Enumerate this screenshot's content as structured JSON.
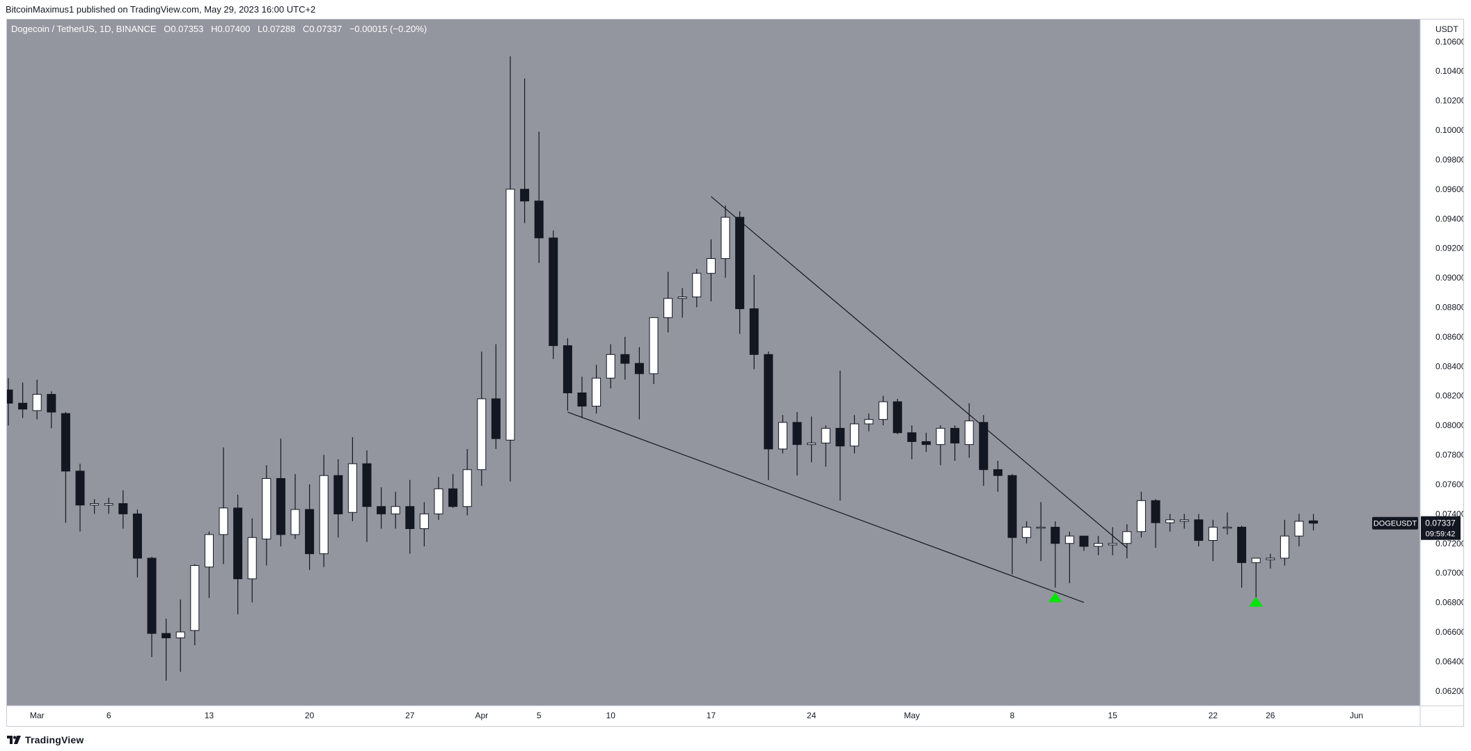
{
  "header": {
    "author": "BitcoinMaximus1",
    "published_text": "published on TradingView.com, May 29, 2023 16:00 UTC+2"
  },
  "legend": {
    "symbol_text": "Dogecoin / TetherUS, 1D, BINANCE",
    "o_label": "O",
    "o_value": "0.07353",
    "h_label": "H",
    "h_value": "0.07400",
    "l_label": "L",
    "l_value": "0.07288",
    "c_label": "C",
    "c_value": "0.07337",
    "change_text": "−0.00015 (−0.20%)"
  },
  "footer": {
    "brand": "TradingView"
  },
  "colors": {
    "plot_background": "#93969f",
    "up_body": "#ffffff",
    "down_body": "#131722",
    "wick": "#131722",
    "trendline": "#131722",
    "marker": "#00e500",
    "price_tag_bg": "#131722",
    "price_tag_text": "#ffffff"
  },
  "chart_data": {
    "type": "candlestick",
    "currency": "USDT",
    "ylim": [
      0.061,
      0.1075
    ],
    "y_ticks": [
      0.062,
      0.064,
      0.066,
      0.068,
      0.07,
      0.072,
      0.074,
      0.076,
      0.078,
      0.08,
      0.082,
      0.084,
      0.086,
      0.088,
      0.09,
      0.092,
      0.094,
      0.096,
      0.098,
      0.1,
      0.102,
      0.104,
      0.106
    ],
    "y_tick_labels": [
      "0.06200",
      "0.06400",
      "0.06600",
      "0.06800",
      "0.07000",
      "0.07200",
      "0.07400",
      "0.07600",
      "0.07800",
      "0.08000",
      "0.08200",
      "0.08400",
      "0.08600",
      "0.08800",
      "0.09000",
      "0.09200",
      "0.09400",
      "0.09600",
      "0.09800",
      "0.10000",
      "0.10200",
      "0.10400",
      "0.10600"
    ],
    "x_labels": [
      {
        "label": "Mar",
        "date": "2023-03-01"
      },
      {
        "label": "6",
        "date": "2023-03-06"
      },
      {
        "label": "13",
        "date": "2023-03-13"
      },
      {
        "label": "20",
        "date": "2023-03-20"
      },
      {
        "label": "27",
        "date": "2023-03-27"
      },
      {
        "label": "Apr",
        "date": "2023-04-01"
      },
      {
        "label": "5",
        "date": "2023-04-05"
      },
      {
        "label": "10",
        "date": "2023-04-10"
      },
      {
        "label": "17",
        "date": "2023-04-17"
      },
      {
        "label": "24",
        "date": "2023-04-24"
      },
      {
        "label": "May",
        "date": "2023-05-01"
      },
      {
        "label": "8",
        "date": "2023-05-08"
      },
      {
        "label": "15",
        "date": "2023-05-15"
      },
      {
        "label": "22",
        "date": "2023-05-22"
      },
      {
        "label": "26",
        "date": "2023-05-26"
      },
      {
        "label": "Jun",
        "date": "2023-06-01"
      }
    ],
    "candles": [
      {
        "date": "2023-02-27",
        "o": 0.0824,
        "h": 0.0832,
        "l": 0.08,
        "c": 0.0815
      },
      {
        "date": "2023-02-28",
        "o": 0.0815,
        "h": 0.0829,
        "l": 0.0805,
        "c": 0.0811
      },
      {
        "date": "2023-03-01",
        "o": 0.081,
        "h": 0.0831,
        "l": 0.0804,
        "c": 0.0821
      },
      {
        "date": "2023-03-02",
        "o": 0.0821,
        "h": 0.0823,
        "l": 0.0798,
        "c": 0.0809
      },
      {
        "date": "2023-03-03",
        "o": 0.0808,
        "h": 0.0809,
        "l": 0.0734,
        "c": 0.0769
      },
      {
        "date": "2023-03-04",
        "o": 0.0769,
        "h": 0.0774,
        "l": 0.0728,
        "c": 0.0746
      },
      {
        "date": "2023-03-05",
        "o": 0.0746,
        "h": 0.075,
        "l": 0.074,
        "c": 0.0747
      },
      {
        "date": "2023-03-06",
        "o": 0.0746,
        "h": 0.0751,
        "l": 0.074,
        "c": 0.0747
      },
      {
        "date": "2023-03-07",
        "o": 0.0747,
        "h": 0.0756,
        "l": 0.073,
        "c": 0.074
      },
      {
        "date": "2023-03-08",
        "o": 0.074,
        "h": 0.0743,
        "l": 0.0697,
        "c": 0.071
      },
      {
        "date": "2023-03-09",
        "o": 0.071,
        "h": 0.0711,
        "l": 0.0643,
        "c": 0.0659
      },
      {
        "date": "2023-03-10",
        "o": 0.0659,
        "h": 0.0669,
        "l": 0.0627,
        "c": 0.0656
      },
      {
        "date": "2023-03-11",
        "o": 0.0656,
        "h": 0.0682,
        "l": 0.0633,
        "c": 0.066
      },
      {
        "date": "2023-03-12",
        "o": 0.0661,
        "h": 0.0706,
        "l": 0.0651,
        "c": 0.0705
      },
      {
        "date": "2023-03-13",
        "o": 0.0704,
        "h": 0.0728,
        "l": 0.0683,
        "c": 0.0726
      },
      {
        "date": "2023-03-14",
        "o": 0.0726,
        "h": 0.0785,
        "l": 0.0706,
        "c": 0.0744
      },
      {
        "date": "2023-03-15",
        "o": 0.0744,
        "h": 0.0753,
        "l": 0.0672,
        "c": 0.0696
      },
      {
        "date": "2023-03-16",
        "o": 0.0696,
        "h": 0.0737,
        "l": 0.068,
        "c": 0.0724
      },
      {
        "date": "2023-03-17",
        "o": 0.0723,
        "h": 0.0773,
        "l": 0.0705,
        "c": 0.0764
      },
      {
        "date": "2023-03-18",
        "o": 0.0764,
        "h": 0.0791,
        "l": 0.0718,
        "c": 0.0726
      },
      {
        "date": "2023-03-19",
        "o": 0.0726,
        "h": 0.0767,
        "l": 0.0723,
        "c": 0.0743
      },
      {
        "date": "2023-03-20",
        "o": 0.0743,
        "h": 0.076,
        "l": 0.0702,
        "c": 0.0713
      },
      {
        "date": "2023-03-21",
        "o": 0.0713,
        "h": 0.078,
        "l": 0.0704,
        "c": 0.0766
      },
      {
        "date": "2023-03-22",
        "o": 0.0766,
        "h": 0.0777,
        "l": 0.0724,
        "c": 0.074
      },
      {
        "date": "2023-03-23",
        "o": 0.0741,
        "h": 0.0792,
        "l": 0.0735,
        "c": 0.0774
      },
      {
        "date": "2023-03-24",
        "o": 0.0774,
        "h": 0.0783,
        "l": 0.0721,
        "c": 0.0745
      },
      {
        "date": "2023-03-25",
        "o": 0.0745,
        "h": 0.0758,
        "l": 0.073,
        "c": 0.074
      },
      {
        "date": "2023-03-26",
        "o": 0.074,
        "h": 0.0755,
        "l": 0.073,
        "c": 0.0745
      },
      {
        "date": "2023-03-27",
        "o": 0.0745,
        "h": 0.0763,
        "l": 0.0713,
        "c": 0.073
      },
      {
        "date": "2023-03-28",
        "o": 0.073,
        "h": 0.0748,
        "l": 0.0718,
        "c": 0.074
      },
      {
        "date": "2023-03-29",
        "o": 0.074,
        "h": 0.0765,
        "l": 0.0736,
        "c": 0.0757
      },
      {
        "date": "2023-03-30",
        "o": 0.0757,
        "h": 0.0767,
        "l": 0.0744,
        "c": 0.0745
      },
      {
        "date": "2023-03-31",
        "o": 0.0745,
        "h": 0.0784,
        "l": 0.0739,
        "c": 0.077
      },
      {
        "date": "2023-04-01",
        "o": 0.077,
        "h": 0.085,
        "l": 0.0759,
        "c": 0.0818
      },
      {
        "date": "2023-04-02",
        "o": 0.0818,
        "h": 0.0855,
        "l": 0.0784,
        "c": 0.0791
      },
      {
        "date": "2023-04-03",
        "o": 0.079,
        "h": 0.105,
        "l": 0.0762,
        "c": 0.096
      },
      {
        "date": "2023-04-04",
        "o": 0.096,
        "h": 0.1035,
        "l": 0.0937,
        "c": 0.0952
      },
      {
        "date": "2023-04-05",
        "o": 0.0952,
        "h": 0.0999,
        "l": 0.091,
        "c": 0.0927
      },
      {
        "date": "2023-04-06",
        "o": 0.0927,
        "h": 0.0932,
        "l": 0.0845,
        "c": 0.0854
      },
      {
        "date": "2023-04-07",
        "o": 0.0854,
        "h": 0.0859,
        "l": 0.081,
        "c": 0.0822
      },
      {
        "date": "2023-04-08",
        "o": 0.0822,
        "h": 0.0833,
        "l": 0.0805,
        "c": 0.0813
      },
      {
        "date": "2023-04-09",
        "o": 0.0813,
        "h": 0.0841,
        "l": 0.0808,
        "c": 0.0832
      },
      {
        "date": "2023-04-10",
        "o": 0.0832,
        "h": 0.0855,
        "l": 0.0825,
        "c": 0.0848
      },
      {
        "date": "2023-04-11",
        "o": 0.0848,
        "h": 0.086,
        "l": 0.0831,
        "c": 0.0842
      },
      {
        "date": "2023-04-12",
        "o": 0.0842,
        "h": 0.0853,
        "l": 0.0804,
        "c": 0.0835
      },
      {
        "date": "2023-04-13",
        "o": 0.0835,
        "h": 0.087,
        "l": 0.0828,
        "c": 0.0873
      },
      {
        "date": "2023-04-14",
        "o": 0.0873,
        "h": 0.0904,
        "l": 0.0863,
        "c": 0.0886
      },
      {
        "date": "2023-04-15",
        "o": 0.0886,
        "h": 0.0893,
        "l": 0.0873,
        "c": 0.0887
      },
      {
        "date": "2023-04-16",
        "o": 0.0887,
        "h": 0.0906,
        "l": 0.088,
        "c": 0.0903
      },
      {
        "date": "2023-04-17",
        "o": 0.0903,
        "h": 0.0926,
        "l": 0.0884,
        "c": 0.0913
      },
      {
        "date": "2023-04-18",
        "o": 0.0913,
        "h": 0.0949,
        "l": 0.09,
        "c": 0.0941
      },
      {
        "date": "2023-04-19",
        "o": 0.0941,
        "h": 0.0945,
        "l": 0.0862,
        "c": 0.0879
      },
      {
        "date": "2023-04-20",
        "o": 0.0879,
        "h": 0.0902,
        "l": 0.0838,
        "c": 0.0848
      },
      {
        "date": "2023-04-21",
        "o": 0.0848,
        "h": 0.085,
        "l": 0.0763,
        "c": 0.0784
      },
      {
        "date": "2023-04-22",
        "o": 0.0784,
        "h": 0.0807,
        "l": 0.0781,
        "c": 0.0802
      },
      {
        "date": "2023-04-23",
        "o": 0.0802,
        "h": 0.0809,
        "l": 0.0766,
        "c": 0.0787
      },
      {
        "date": "2023-04-24",
        "o": 0.0787,
        "h": 0.0806,
        "l": 0.0775,
        "c": 0.0788
      },
      {
        "date": "2023-04-25",
        "o": 0.0788,
        "h": 0.08,
        "l": 0.0772,
        "c": 0.0798
      },
      {
        "date": "2023-04-26",
        "o": 0.0798,
        "h": 0.0837,
        "l": 0.0749,
        "c": 0.0786
      },
      {
        "date": "2023-04-27",
        "o": 0.0786,
        "h": 0.0807,
        "l": 0.0781,
        "c": 0.0801
      },
      {
        "date": "2023-04-28",
        "o": 0.0801,
        "h": 0.0808,
        "l": 0.0796,
        "c": 0.0804
      },
      {
        "date": "2023-04-29",
        "o": 0.0804,
        "h": 0.082,
        "l": 0.08,
        "c": 0.0816
      },
      {
        "date": "2023-04-30",
        "o": 0.0816,
        "h": 0.0818,
        "l": 0.0794,
        "c": 0.0795
      },
      {
        "date": "2023-05-01",
        "o": 0.0795,
        "h": 0.08,
        "l": 0.0777,
        "c": 0.0789
      },
      {
        "date": "2023-05-02",
        "o": 0.0789,
        "h": 0.0795,
        "l": 0.0782,
        "c": 0.0787
      },
      {
        "date": "2023-05-03",
        "o": 0.0787,
        "h": 0.08,
        "l": 0.0773,
        "c": 0.0798
      },
      {
        "date": "2023-05-04",
        "o": 0.0798,
        "h": 0.08,
        "l": 0.0776,
        "c": 0.0788
      },
      {
        "date": "2023-05-05",
        "o": 0.0787,
        "h": 0.0815,
        "l": 0.0778,
        "c": 0.0803
      },
      {
        "date": "2023-05-06",
        "o": 0.0802,
        "h": 0.0807,
        "l": 0.0759,
        "c": 0.077
      },
      {
        "date": "2023-05-07",
        "o": 0.077,
        "h": 0.0776,
        "l": 0.0755,
        "c": 0.0766
      },
      {
        "date": "2023-05-08",
        "o": 0.0766,
        "h": 0.0767,
        "l": 0.0699,
        "c": 0.0724
      },
      {
        "date": "2023-05-09",
        "o": 0.0724,
        "h": 0.0735,
        "l": 0.072,
        "c": 0.0731
      },
      {
        "date": "2023-05-10",
        "o": 0.0731,
        "h": 0.0748,
        "l": 0.0708,
        "c": 0.0731
      },
      {
        "date": "2023-05-11",
        "o": 0.0731,
        "h": 0.0735,
        "l": 0.069,
        "c": 0.072
      },
      {
        "date": "2023-05-12",
        "o": 0.072,
        "h": 0.0728,
        "l": 0.0693,
        "c": 0.0725
      },
      {
        "date": "2023-05-13",
        "o": 0.0725,
        "h": 0.0725,
        "l": 0.0715,
        "c": 0.0718
      },
      {
        "date": "2023-05-14",
        "o": 0.0718,
        "h": 0.0725,
        "l": 0.0712,
        "c": 0.072
      },
      {
        "date": "2023-05-15",
        "o": 0.0719,
        "h": 0.0731,
        "l": 0.0712,
        "c": 0.072
      },
      {
        "date": "2023-05-16",
        "o": 0.072,
        "h": 0.0733,
        "l": 0.071,
        "c": 0.0728
      },
      {
        "date": "2023-05-17",
        "o": 0.0728,
        "h": 0.0755,
        "l": 0.0724,
        "c": 0.0749
      },
      {
        "date": "2023-05-18",
        "o": 0.0749,
        "h": 0.075,
        "l": 0.0717,
        "c": 0.0734
      },
      {
        "date": "2023-05-19",
        "o": 0.0734,
        "h": 0.074,
        "l": 0.0728,
        "c": 0.0736
      },
      {
        "date": "2023-05-20",
        "o": 0.0735,
        "h": 0.074,
        "l": 0.073,
        "c": 0.0736
      },
      {
        "date": "2023-05-21",
        "o": 0.0736,
        "h": 0.074,
        "l": 0.0718,
        "c": 0.0722
      },
      {
        "date": "2023-05-22",
        "o": 0.0722,
        "h": 0.0736,
        "l": 0.0708,
        "c": 0.0731
      },
      {
        "date": "2023-05-23",
        "o": 0.0731,
        "h": 0.0741,
        "l": 0.0726,
        "c": 0.0731
      },
      {
        "date": "2023-05-24",
        "o": 0.0731,
        "h": 0.0732,
        "l": 0.069,
        "c": 0.0707
      },
      {
        "date": "2023-05-25",
        "o": 0.0707,
        "h": 0.071,
        "l": 0.0682,
        "c": 0.071
      },
      {
        "date": "2023-05-26",
        "o": 0.0709,
        "h": 0.0713,
        "l": 0.0703,
        "c": 0.071
      },
      {
        "date": "2023-05-27",
        "o": 0.071,
        "h": 0.0736,
        "l": 0.0705,
        "c": 0.0725
      },
      {
        "date": "2023-05-28",
        "o": 0.0725,
        "h": 0.074,
        "l": 0.0718,
        "c": 0.0735
      },
      {
        "date": "2023-05-29",
        "o": 0.07353,
        "h": 0.074,
        "l": 0.07288,
        "c": 0.07337
      }
    ],
    "trendlines": [
      {
        "from": {
          "date": "2023-04-17",
          "y": 0.0955
        },
        "to": {
          "date": "2023-05-16",
          "y": 0.0717
        }
      },
      {
        "from": {
          "date": "2023-04-07",
          "y": 0.0809
        },
        "to": {
          "date": "2023-05-13",
          "y": 0.068
        }
      }
    ],
    "markers": [
      {
        "type": "triangle-up",
        "date": "2023-05-11",
        "y": 0.0683
      },
      {
        "type": "triangle-up",
        "date": "2023-05-25",
        "y": 0.068
      }
    ],
    "price_tag": {
      "symbol": "DOGEUSDT",
      "price": "0.07337",
      "countdown": "09:59:42",
      "y": 0.07337
    }
  }
}
